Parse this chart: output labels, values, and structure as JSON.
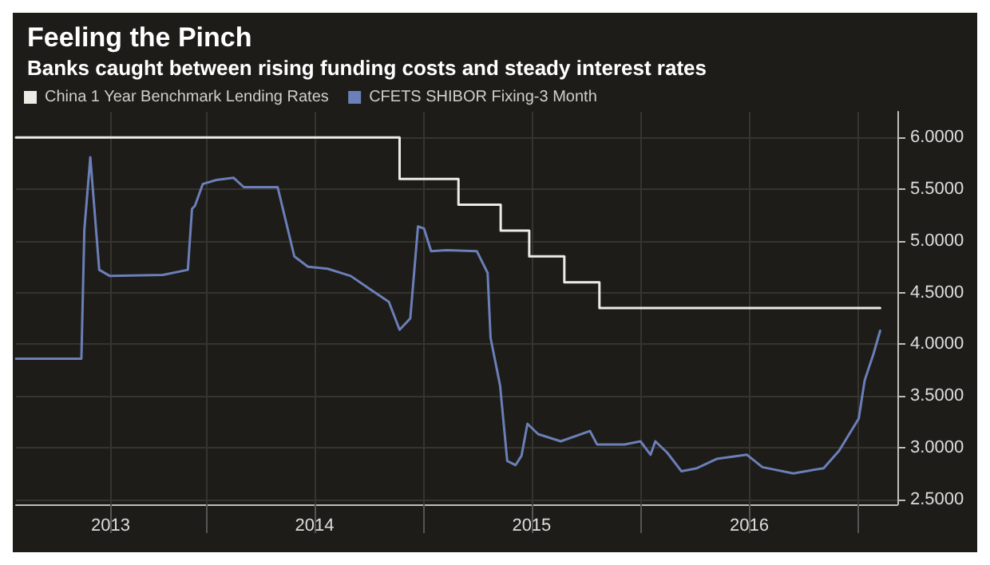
{
  "chart_data": {
    "type": "line",
    "title": "Feeling the Pinch",
    "subtitle": "Banks caught between rising funding costs and steady interest rates",
    "legend": "top left",
    "grid": true,
    "marker": "none",
    "line_style": "solid",
    "xlim": [
      "2013-02-15",
      "2017-03-08"
    ],
    "xticks": [
      {
        "value": "2013-07-24",
        "label": "2013"
      },
      {
        "value": "2014-01-01",
        "label": null
      },
      {
        "value": "2014-07-02",
        "label": "2014"
      },
      {
        "value": "2015-01-01",
        "label": null
      },
      {
        "value": "2015-07-02",
        "label": "2015"
      },
      {
        "value": "2016-01-01",
        "label": null
      },
      {
        "value": "2016-07-02",
        "label": "2016"
      },
      {
        "value": "2017-01-01",
        "label": null
      }
    ],
    "ylim": [
      2.45,
      6.25
    ],
    "yticks": [
      {
        "value": 2.5,
        "label": "2.5000"
      },
      {
        "value": 3,
        "label": "3.0000"
      },
      {
        "value": 3.5,
        "label": "3.5000"
      },
      {
        "value": 4,
        "label": "4.0000"
      },
      {
        "value": 4.5,
        "label": "4.5000"
      },
      {
        "value": 5,
        "label": "5.0000"
      },
      {
        "value": 5.5,
        "label": "5.5000"
      },
      {
        "value": 6,
        "label": "6.0000"
      }
    ],
    "series": [
      {
        "name": "China 1 Year Benchmark Lending Rates",
        "type": "step",
        "color": "#ecebe4",
        "x": [
          "2013-02-15",
          "2014-11-22",
          "2015-03-01",
          "2015-05-11",
          "2015-06-28",
          "2015-08-26",
          "2015-10-24",
          "2017-02-07"
        ],
        "values": [
          6.0,
          5.6,
          5.35,
          5.1,
          4.85,
          4.6,
          4.35,
          4.35
        ]
      },
      {
        "name": "CFETS SHIBOR Fixing-3 Month",
        "color": "#6b7fb8",
        "x": [
          "2013-02-15",
          "2013-06-05",
          "2013-06-10",
          "2013-06-20",
          "2013-07-05",
          "2013-07-23",
          "2013-10-20",
          "2013-12-01",
          "2013-12-08",
          "2013-12-13",
          "2013-12-26",
          "2014-01-18",
          "2014-02-16",
          "2014-03-05",
          "2014-05-01",
          "2014-05-29",
          "2014-06-21",
          "2014-07-24",
          "2014-09-01",
          "2014-10-04",
          "2014-11-04",
          "2014-11-22",
          "2014-12-10",
          "2014-12-23",
          "2015-01-02",
          "2015-01-14",
          "2015-02-09",
          "2015-04-01",
          "2015-04-19",
          "2015-04-24",
          "2015-05-10",
          "2015-05-22",
          "2015-06-05",
          "2015-06-15",
          "2015-06-25",
          "2015-07-13",
          "2015-08-20",
          "2015-10-08",
          "2015-10-20",
          "2015-12-05",
          "2016-01-01",
          "2016-01-18",
          "2016-01-26",
          "2016-02-15",
          "2016-03-10",
          "2016-04-05",
          "2016-05-08",
          "2016-06-28",
          "2016-07-24",
          "2016-09-14",
          "2016-11-04",
          "2016-11-30",
          "2017-01-02",
          "2017-01-12",
          "2017-01-27",
          "2017-02-07"
        ],
        "values": [
          3.86,
          3.86,
          5.11,
          5.81,
          4.72,
          4.66,
          4.67,
          4.72,
          5.31,
          5.34,
          5.55,
          5.59,
          5.61,
          5.52,
          5.52,
          4.85,
          4.75,
          4.73,
          4.66,
          4.53,
          4.41,
          4.14,
          4.25,
          5.14,
          5.12,
          4.9,
          4.91,
          4.9,
          4.69,
          4.06,
          3.6,
          2.87,
          2.83,
          2.92,
          3.23,
          3.13,
          3.06,
          3.16,
          3.03,
          3.03,
          3.06,
          2.93,
          3.06,
          2.95,
          2.77,
          2.8,
          2.89,
          2.93,
          2.81,
          2.75,
          2.8,
          2.97,
          3.28,
          3.65,
          3.91,
          4.13
        ]
      }
    ]
  }
}
